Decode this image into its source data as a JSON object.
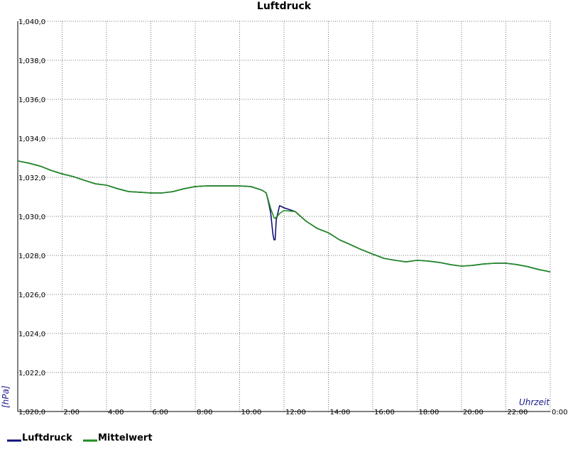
{
  "chart_data": {
    "type": "line",
    "title": "Luftdruck",
    "xlabel": "Uhrzeit",
    "ylabel": "[hPa]",
    "grid": true,
    "legend": "bottom-left",
    "xlim": [
      0,
      24
    ],
    "ylim": [
      1020,
      1040
    ],
    "xticks": [
      {
        "value": 2,
        "label": "2:00"
      },
      {
        "value": 4,
        "label": "4:00"
      },
      {
        "value": 6,
        "label": "6:00"
      },
      {
        "value": 8,
        "label": "8:00"
      },
      {
        "value": 10,
        "label": "10:00"
      },
      {
        "value": 12,
        "label": "12:00"
      },
      {
        "value": 14,
        "label": "14:00"
      },
      {
        "value": 16,
        "label": "16:00"
      },
      {
        "value": 18,
        "label": "18:00"
      },
      {
        "value": 20,
        "label": "20:00"
      },
      {
        "value": 22,
        "label": "22:00"
      },
      {
        "value": 24,
        "label": "0:00"
      }
    ],
    "yticks": [
      {
        "value": 1020,
        "label": "1,020,0"
      },
      {
        "value": 1022,
        "label": "1,022,0"
      },
      {
        "value": 1024,
        "label": "1,024,0"
      },
      {
        "value": 1026,
        "label": "1,026,0"
      },
      {
        "value": 1028,
        "label": "1,028,0"
      },
      {
        "value": 1030,
        "label": "1,030,0"
      },
      {
        "value": 1032,
        "label": "1,032,0"
      },
      {
        "value": 1034,
        "label": "1,034,0"
      },
      {
        "value": 1036,
        "label": "1,036,0"
      },
      {
        "value": 1038,
        "label": "1,038,0"
      },
      {
        "value": 1040,
        "label": "1,040,0"
      }
    ],
    "x": [
      0,
      0.5,
      1,
      1.5,
      2,
      2.5,
      3,
      3.5,
      4,
      4.5,
      5,
      5.5,
      6,
      6.5,
      7,
      7.5,
      8,
      8.5,
      9,
      9.5,
      10,
      10.5,
      11,
      11.2,
      11.3,
      11.4,
      11.5,
      11.55,
      11.6,
      11.65,
      11.8,
      12,
      12.5,
      13,
      13.5,
      14,
      14.5,
      15,
      15.5,
      16,
      16.5,
      17,
      17.5,
      18,
      18.5,
      19,
      19.5,
      20,
      20.5,
      21,
      21.5,
      22,
      22.5,
      23,
      23.5,
      24
    ],
    "series": [
      {
        "name": "Luftdruck",
        "color": "#10107a",
        "values": [
          1032.84,
          1032.73,
          1032.58,
          1032.36,
          1032.18,
          1032.04,
          1031.85,
          1031.67,
          1031.6,
          1031.42,
          1031.27,
          1031.24,
          1031.2,
          1031.2,
          1031.27,
          1031.42,
          1031.53,
          1031.56,
          1031.56,
          1031.56,
          1031.56,
          1031.53,
          1031.35,
          1031.2,
          1030.73,
          1030.18,
          1029.09,
          1028.8,
          1028.8,
          1029.82,
          1030.55,
          1030.44,
          1030.25,
          1029.75,
          1029.38,
          1029.16,
          1028.8,
          1028.55,
          1028.29,
          1028.07,
          1027.85,
          1027.75,
          1027.67,
          1027.75,
          1027.71,
          1027.64,
          1027.53,
          1027.45,
          1027.49,
          1027.56,
          1027.6,
          1027.6,
          1027.53,
          1027.42,
          1027.27,
          1027.16
        ]
      },
      {
        "name": "Mittelwert",
        "color": "#1e8c1e",
        "values": [
          1032.84,
          1032.73,
          1032.58,
          1032.36,
          1032.18,
          1032.04,
          1031.85,
          1031.67,
          1031.6,
          1031.42,
          1031.27,
          1031.24,
          1031.2,
          1031.2,
          1031.27,
          1031.42,
          1031.53,
          1031.56,
          1031.56,
          1031.56,
          1031.56,
          1031.53,
          1031.35,
          1031.2,
          1030.8,
          1030.4,
          1030.1,
          1029.93,
          1029.9,
          1029.95,
          1030.15,
          1030.3,
          1030.25,
          1029.75,
          1029.38,
          1029.16,
          1028.8,
          1028.55,
          1028.29,
          1028.07,
          1027.85,
          1027.75,
          1027.67,
          1027.75,
          1027.71,
          1027.64,
          1027.53,
          1027.45,
          1027.49,
          1027.56,
          1027.6,
          1027.6,
          1027.53,
          1027.42,
          1027.27,
          1027.16
        ]
      }
    ]
  }
}
